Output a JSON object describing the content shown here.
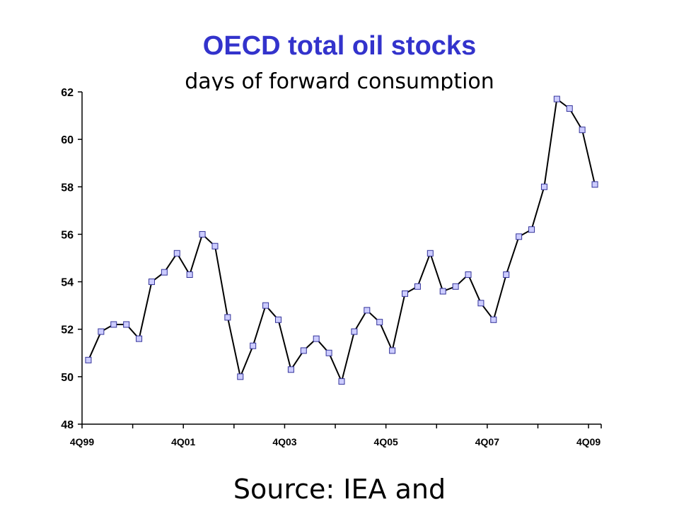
{
  "chart_data": {
    "type": "line",
    "title": "OECD total oil stocks",
    "subtitle": "days of forward consumption",
    "xlabel": "",
    "ylabel": "",
    "ylim": [
      48,
      62
    ],
    "yticks": [
      48,
      50,
      52,
      54,
      56,
      58,
      60,
      62
    ],
    "xtick_labels": [
      "4Q99",
      "4Q01",
      "4Q03",
      "4Q05",
      "4Q07",
      "4Q09"
    ],
    "x": [
      "4Q99",
      "1Q00",
      "2Q00",
      "3Q00",
      "4Q00",
      "1Q01",
      "2Q01",
      "3Q01",
      "4Q01",
      "1Q02",
      "2Q02",
      "3Q02",
      "4Q02",
      "1Q03",
      "2Q03",
      "3Q03",
      "4Q03",
      "1Q04",
      "2Q04",
      "3Q04",
      "4Q04",
      "1Q05",
      "2Q05",
      "3Q05",
      "4Q05",
      "1Q06",
      "2Q06",
      "3Q06",
      "4Q06",
      "1Q07",
      "2Q07",
      "3Q07",
      "4Q07",
      "1Q08",
      "2Q08",
      "3Q08",
      "4Q08",
      "1Q09",
      "2Q09",
      "3Q09",
      "4Q09"
    ],
    "series": [
      {
        "name": "",
        "values": [
          50.7,
          51.9,
          52.2,
          52.2,
          51.6,
          54.0,
          54.4,
          55.2,
          54.3,
          56.0,
          55.5,
          52.5,
          50.0,
          51.3,
          53.0,
          52.4,
          50.3,
          51.1,
          51.6,
          51.0,
          49.8,
          51.9,
          52.8,
          52.3,
          51.1,
          53.5,
          53.8,
          55.2,
          53.6,
          53.8,
          54.3,
          53.1,
          52.4,
          54.3,
          55.9,
          56.2,
          58.0,
          61.7,
          61.3,
          60.4,
          58.1
        ]
      }
    ],
    "grid": false,
    "legend": "none",
    "colors": {
      "line": "#000000",
      "marker_fill": "#ccccff",
      "marker_stroke": "#333399",
      "title": "#3333cc"
    }
  },
  "footer": {
    "source": "Source: IEA and"
  }
}
